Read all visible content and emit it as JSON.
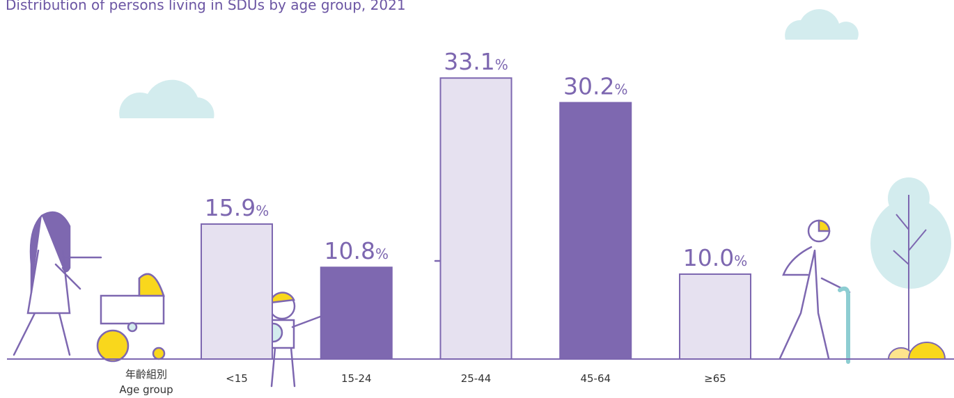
{
  "chart_data": {
    "type": "bar",
    "title": "Distribution of persons living in SDUs by age group, 2021",
    "x_label": [
      "年齡組別",
      "Age group"
    ],
    "categories": [
      "<15",
      "15-24",
      "25-44",
      "45-64",
      "≥65"
    ],
    "values": [
      15.9,
      10.8,
      33.1,
      30.2,
      10.0
    ],
    "value_labels": [
      "15.9%",
      "10.8%",
      "33.1%",
      "30.2%",
      "10.0%"
    ],
    "colors": [
      "#e6e1f0",
      "#7e68b0",
      "#e6e1f0",
      "#7e68b0",
      "#e6e1f0"
    ],
    "ylim": [
      0,
      40
    ]
  }
}
